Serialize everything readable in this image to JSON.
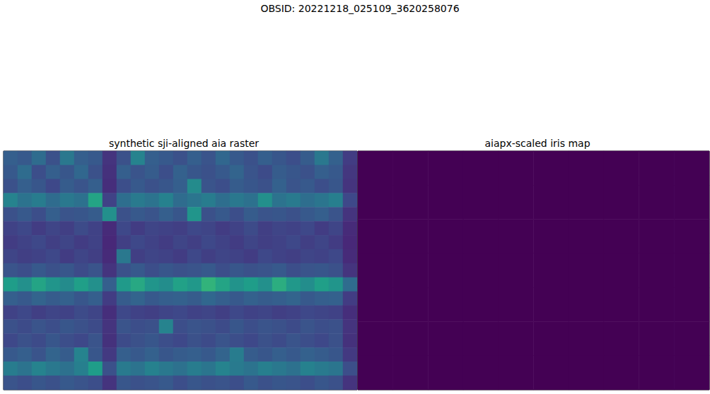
{
  "chart_data": {
    "type": "heatmap",
    "title": "OBSID: 20221218_025109_3620258076",
    "tick_labels": false,
    "panels": [
      {
        "title": "synthetic sji-aligned aia raster",
        "type": "heatmap",
        "value_range": [
          0,
          1
        ],
        "cells": [
          [
            0.3,
            0.28,
            0.35,
            0.25,
            0.4,
            0.3,
            0.28,
            0.15,
            0.25,
            0.45,
            0.3,
            0.28,
            0.25,
            0.3,
            0.26,
            0.33,
            0.28,
            0.25,
            0.3,
            0.27,
            0.24,
            0.29,
            0.4,
            0.31,
            0.18
          ],
          [
            0.28,
            0.35,
            0.24,
            0.3,
            0.27,
            0.33,
            0.25,
            0.14,
            0.3,
            0.26,
            0.29,
            0.24,
            0.31,
            0.27,
            0.25,
            0.28,
            0.32,
            0.26,
            0.23,
            0.29,
            0.27,
            0.25,
            0.3,
            0.28,
            0.16
          ],
          [
            0.25,
            0.3,
            0.27,
            0.22,
            0.29,
            0.26,
            0.3,
            0.13,
            0.24,
            0.28,
            0.25,
            0.27,
            0.3,
            0.48,
            0.26,
            0.24,
            0.29,
            0.27,
            0.25,
            0.31,
            0.26,
            0.28,
            0.24,
            0.27,
            0.15
          ],
          [
            0.45,
            0.38,
            0.42,
            0.35,
            0.4,
            0.37,
            0.58,
            0.2,
            0.36,
            0.41,
            0.38,
            0.44,
            0.35,
            0.39,
            0.42,
            0.36,
            0.4,
            0.37,
            0.5,
            0.38,
            0.41,
            0.36,
            0.39,
            0.43,
            0.22
          ],
          [
            0.25,
            0.28,
            0.24,
            0.3,
            0.26,
            0.27,
            0.29,
            0.5,
            0.25,
            0.28,
            0.26,
            0.3,
            0.27,
            0.52,
            0.25,
            0.28,
            0.24,
            0.29,
            0.26,
            0.27,
            0.25,
            0.28,
            0.3,
            0.26,
            0.15
          ],
          [
            0.2,
            0.22,
            0.18,
            0.21,
            0.19,
            0.23,
            0.2,
            0.12,
            0.22,
            0.18,
            0.21,
            0.2,
            0.19,
            0.22,
            0.21,
            0.18,
            0.2,
            0.23,
            0.19,
            0.21,
            0.2,
            0.22,
            0.18,
            0.21,
            0.12
          ],
          [
            0.18,
            0.2,
            0.22,
            0.19,
            0.21,
            0.18,
            0.2,
            0.11,
            0.19,
            0.22,
            0.2,
            0.18,
            0.21,
            0.19,
            0.22,
            0.2,
            0.18,
            0.21,
            0.19,
            0.2,
            0.22,
            0.19,
            0.21,
            0.18,
            0.11
          ],
          [
            0.21,
            0.19,
            0.2,
            0.22,
            0.18,
            0.21,
            0.19,
            0.12,
            0.4,
            0.19,
            0.21,
            0.2,
            0.18,
            0.22,
            0.19,
            0.21,
            0.2,
            0.18,
            0.22,
            0.2,
            0.19,
            0.21,
            0.2,
            0.22,
            0.12
          ],
          [
            0.26,
            0.24,
            0.28,
            0.25,
            0.27,
            0.23,
            0.26,
            0.15,
            0.25,
            0.28,
            0.24,
            0.27,
            0.25,
            0.26,
            0.28,
            0.24,
            0.27,
            0.25,
            0.26,
            0.28,
            0.24,
            0.26,
            0.27,
            0.25,
            0.15
          ],
          [
            0.55,
            0.5,
            0.58,
            0.52,
            0.48,
            0.56,
            0.5,
            0.3,
            0.54,
            0.6,
            0.52,
            0.49,
            0.57,
            0.53,
            0.65,
            0.58,
            0.51,
            0.55,
            0.5,
            0.62,
            0.53,
            0.49,
            0.56,
            0.52,
            0.35
          ],
          [
            0.3,
            0.28,
            0.32,
            0.29,
            0.31,
            0.27,
            0.3,
            0.18,
            0.29,
            0.32,
            0.28,
            0.3,
            0.31,
            0.29,
            0.33,
            0.3,
            0.28,
            0.31,
            0.29,
            0.3,
            0.32,
            0.28,
            0.3,
            0.31,
            0.18
          ],
          [
            0.2,
            0.22,
            0.19,
            0.21,
            0.2,
            0.23,
            0.21,
            0.13,
            0.22,
            0.2,
            0.19,
            0.21,
            0.22,
            0.2,
            0.21,
            0.19,
            0.22,
            0.2,
            0.21,
            0.19,
            0.2,
            0.22,
            0.21,
            0.2,
            0.13
          ],
          [
            0.25,
            0.23,
            0.26,
            0.24,
            0.27,
            0.25,
            0.23,
            0.15,
            0.26,
            0.24,
            0.25,
            0.45,
            0.24,
            0.26,
            0.25,
            0.23,
            0.27,
            0.24,
            0.26,
            0.25,
            0.23,
            0.26,
            0.24,
            0.25,
            0.15
          ],
          [
            0.22,
            0.25,
            0.23,
            0.27,
            0.24,
            0.22,
            0.26,
            0.14,
            0.23,
            0.25,
            0.27,
            0.24,
            0.22,
            0.25,
            0.23,
            0.26,
            0.24,
            0.22,
            0.25,
            0.23,
            0.26,
            0.24,
            0.22,
            0.25,
            0.14
          ],
          [
            0.28,
            0.3,
            0.26,
            0.32,
            0.29,
            0.45,
            0.27,
            0.17,
            0.3,
            0.28,
            0.31,
            0.27,
            0.29,
            0.3,
            0.28,
            0.32,
            0.42,
            0.29,
            0.27,
            0.3,
            0.28,
            0.31,
            0.29,
            0.27,
            0.17
          ],
          [
            0.42,
            0.38,
            0.45,
            0.4,
            0.37,
            0.43,
            0.55,
            0.25,
            0.41,
            0.38,
            0.44,
            0.4,
            0.37,
            0.42,
            0.39,
            0.45,
            0.41,
            0.38,
            0.43,
            0.4,
            0.37,
            0.44,
            0.41,
            0.39,
            0.24
          ],
          [
            0.26,
            0.24,
            0.27,
            0.25,
            0.28,
            0.26,
            0.24,
            0.15,
            0.27,
            0.25,
            0.26,
            0.28,
            0.24,
            0.27,
            0.25,
            0.26,
            0.24,
            0.28,
            0.25,
            0.27,
            0.26,
            0.24,
            0.27,
            0.25,
            0.15
          ]
        ]
      },
      {
        "title": "aiapx-scaled iris map",
        "type": "heatmap",
        "value_range": [
          0,
          1
        ],
        "cells": [
          [
            0,
            0,
            0,
            0,
            0,
            0,
            0,
            0,
            0,
            0
          ],
          [
            0,
            0,
            0,
            0,
            0,
            0,
            0,
            0,
            0,
            0
          ],
          [
            0,
            0,
            0,
            0,
            0,
            0,
            0,
            0,
            0,
            0
          ],
          [
            0,
            0,
            0,
            0,
            0,
            0,
            0,
            0,
            0,
            0
          ],
          [
            0,
            0,
            0,
            0,
            0,
            0,
            0,
            0,
            0,
            0
          ],
          [
            0,
            0,
            0,
            0,
            0,
            0,
            0,
            0,
            0,
            0
          ],
          [
            0,
            0,
            0,
            0,
            0,
            0,
            0,
            0,
            0,
            0
          ]
        ]
      }
    ]
  }
}
